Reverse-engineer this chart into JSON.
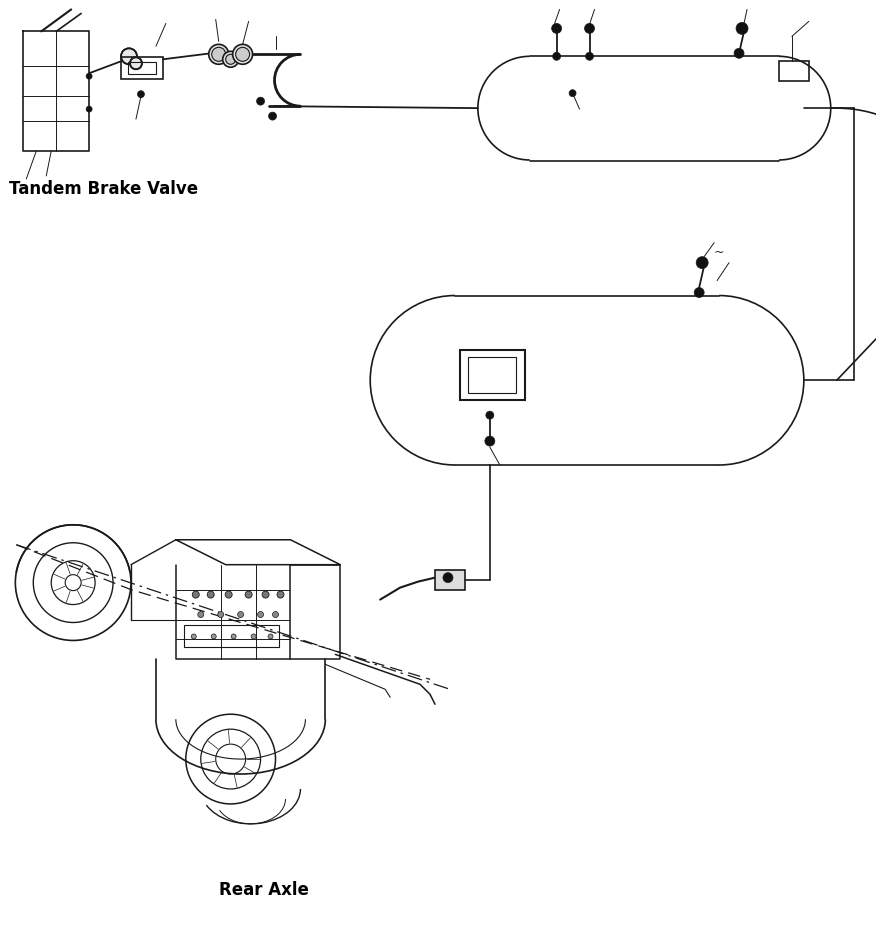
{
  "background_color": "#ffffff",
  "label_tandem": "Tandem Brake Valve",
  "label_rear_axle": "Rear Axle",
  "line_color": "#1a1a1a",
  "fig_width": 8.77,
  "fig_height": 9.31
}
